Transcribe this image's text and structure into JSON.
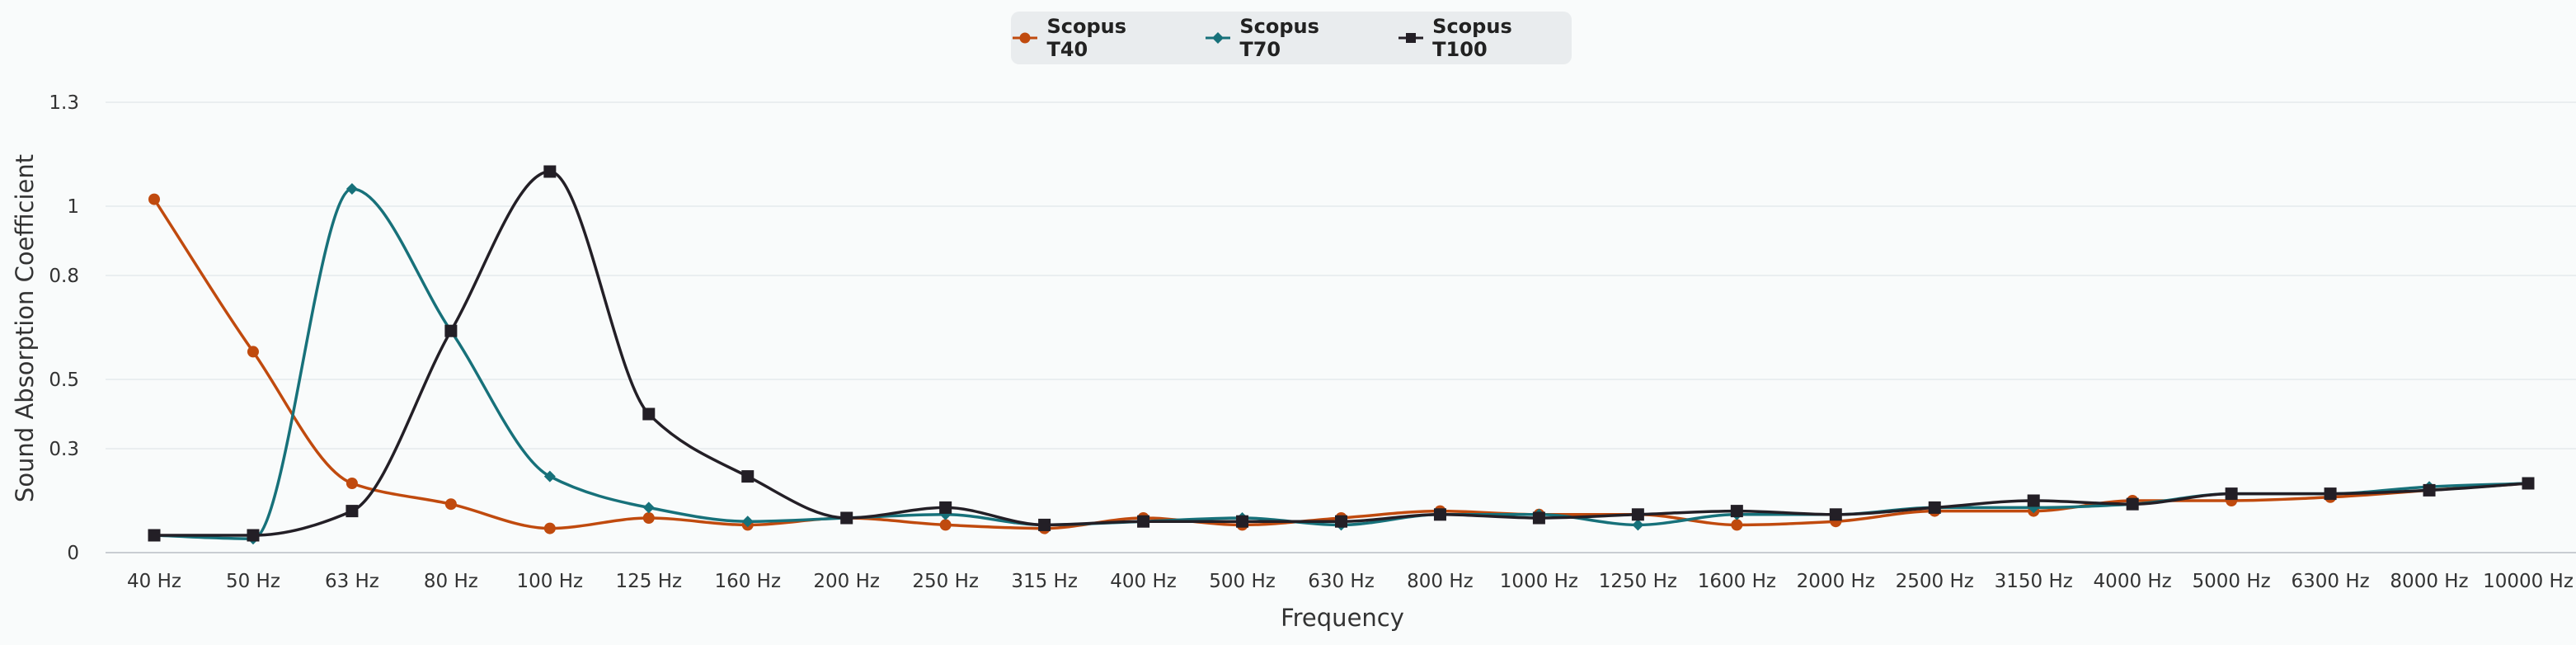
{
  "chart_data": {
    "type": "line",
    "xlabel": "Frequency",
    "ylabel": "Sound Absorption Coefficient",
    "ylim": [
      0,
      1.3
    ],
    "yticks": [
      0,
      0.3,
      0.5,
      0.8,
      1,
      1.3
    ],
    "grid": true,
    "legend_position": "top-center",
    "categories": [
      "40 Hz",
      "50 Hz",
      "63 Hz",
      "80 Hz",
      "100 Hz",
      "125 Hz",
      "160 Hz",
      "200 Hz",
      "250 Hz",
      "315 Hz",
      "400 Hz",
      "500 Hz",
      "630 Hz",
      "800 Hz",
      "1000 Hz",
      "1250 Hz",
      "1600 Hz",
      "2000 Hz",
      "2500 Hz",
      "3150 Hz",
      "4000 Hz",
      "5000 Hz",
      "6300 Hz",
      "8000 Hz",
      "10000 Hz"
    ],
    "series": [
      {
        "name": "Scopus T40",
        "color": "#c04a0e",
        "marker": "circle",
        "values": [
          1.02,
          0.58,
          0.2,
          0.14,
          0.07,
          0.1,
          0.08,
          0.1,
          0.08,
          0.07,
          0.1,
          0.08,
          0.1,
          0.12,
          0.11,
          0.11,
          0.08,
          0.09,
          0.12,
          0.12,
          0.15,
          0.15,
          0.16,
          0.18,
          0.2
        ]
      },
      {
        "name": "Scopus T70",
        "color": "#17717a",
        "marker": "diamond",
        "values": [
          0.05,
          0.04,
          1.05,
          0.64,
          0.22,
          0.13,
          0.09,
          0.1,
          0.11,
          0.08,
          0.09,
          0.1,
          0.08,
          0.11,
          0.11,
          0.08,
          0.11,
          0.11,
          0.13,
          0.13,
          0.14,
          0.17,
          0.17,
          0.19,
          0.2
        ]
      },
      {
        "name": "Scopus T100",
        "color": "#231f26",
        "marker": "square",
        "values": [
          0.05,
          0.05,
          0.12,
          0.64,
          1.1,
          0.4,
          0.22,
          0.1,
          0.13,
          0.08,
          0.09,
          0.09,
          0.09,
          0.11,
          0.1,
          0.11,
          0.12,
          0.11,
          0.13,
          0.15,
          0.14,
          0.17,
          0.17,
          0.18,
          0.2
        ]
      }
    ]
  }
}
